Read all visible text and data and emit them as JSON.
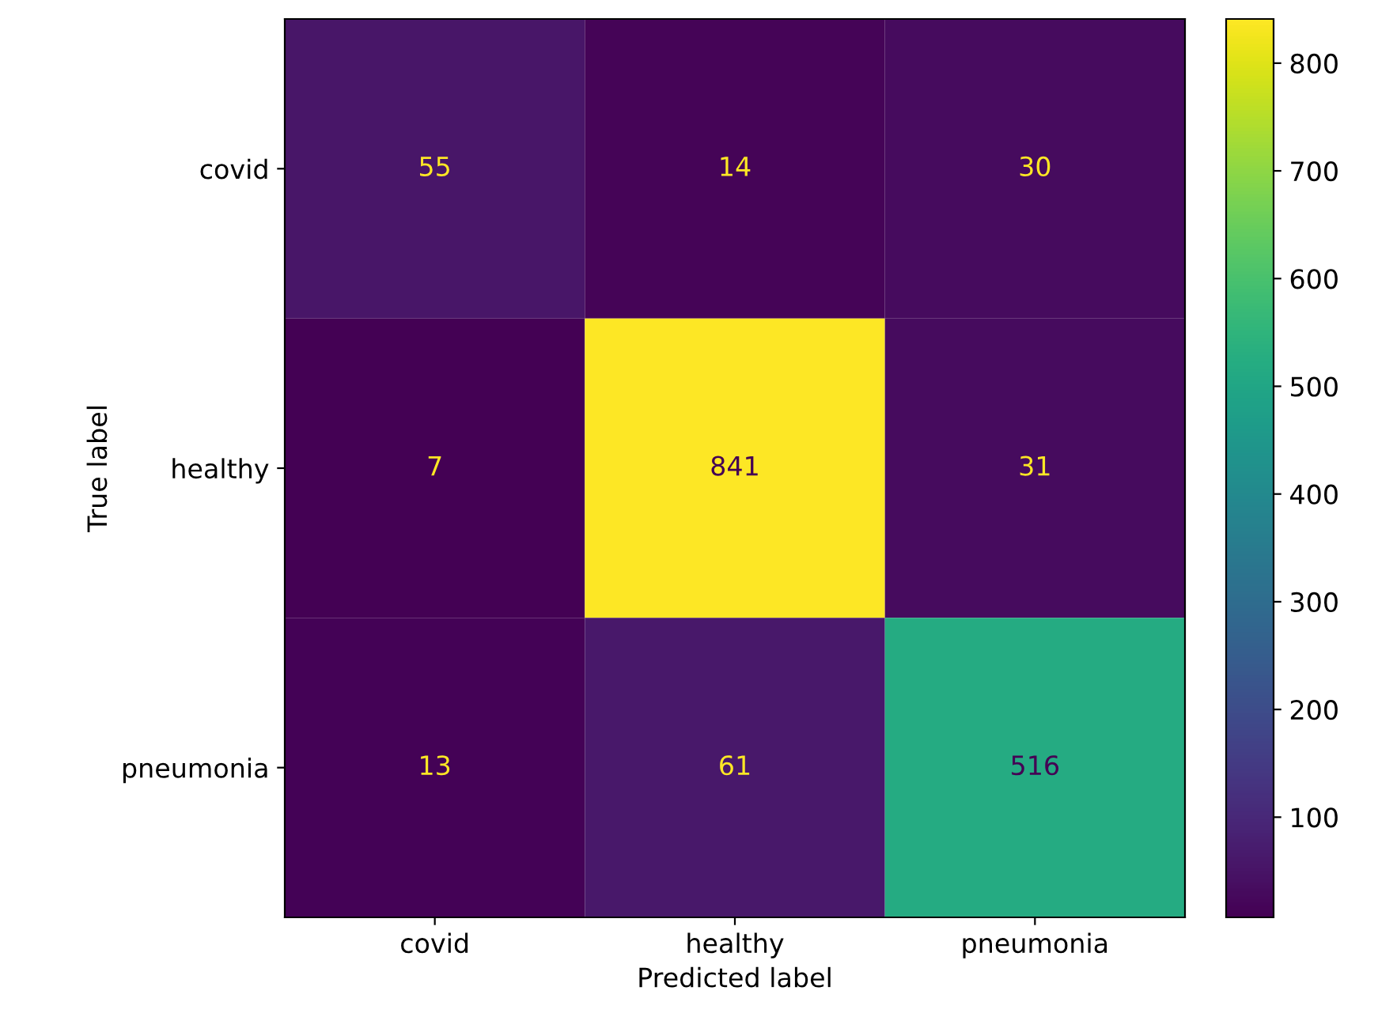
{
  "chart_data": {
    "type": "heatmap",
    "xlabel": "Predicted label",
    "ylabel": "True label",
    "categories": [
      "covid",
      "healthy",
      "pneumonia"
    ],
    "y_categories": [
      "covid",
      "healthy",
      "pneumonia"
    ],
    "cells": [
      [
        55,
        14,
        30
      ],
      [
        7,
        841,
        31
      ],
      [
        13,
        61,
        516
      ]
    ],
    "clim": [
      7,
      841
    ],
    "cticks": [
      100,
      200,
      300,
      400,
      500,
      600,
      700,
      800
    ],
    "data_labels": true,
    "grid": false
  }
}
